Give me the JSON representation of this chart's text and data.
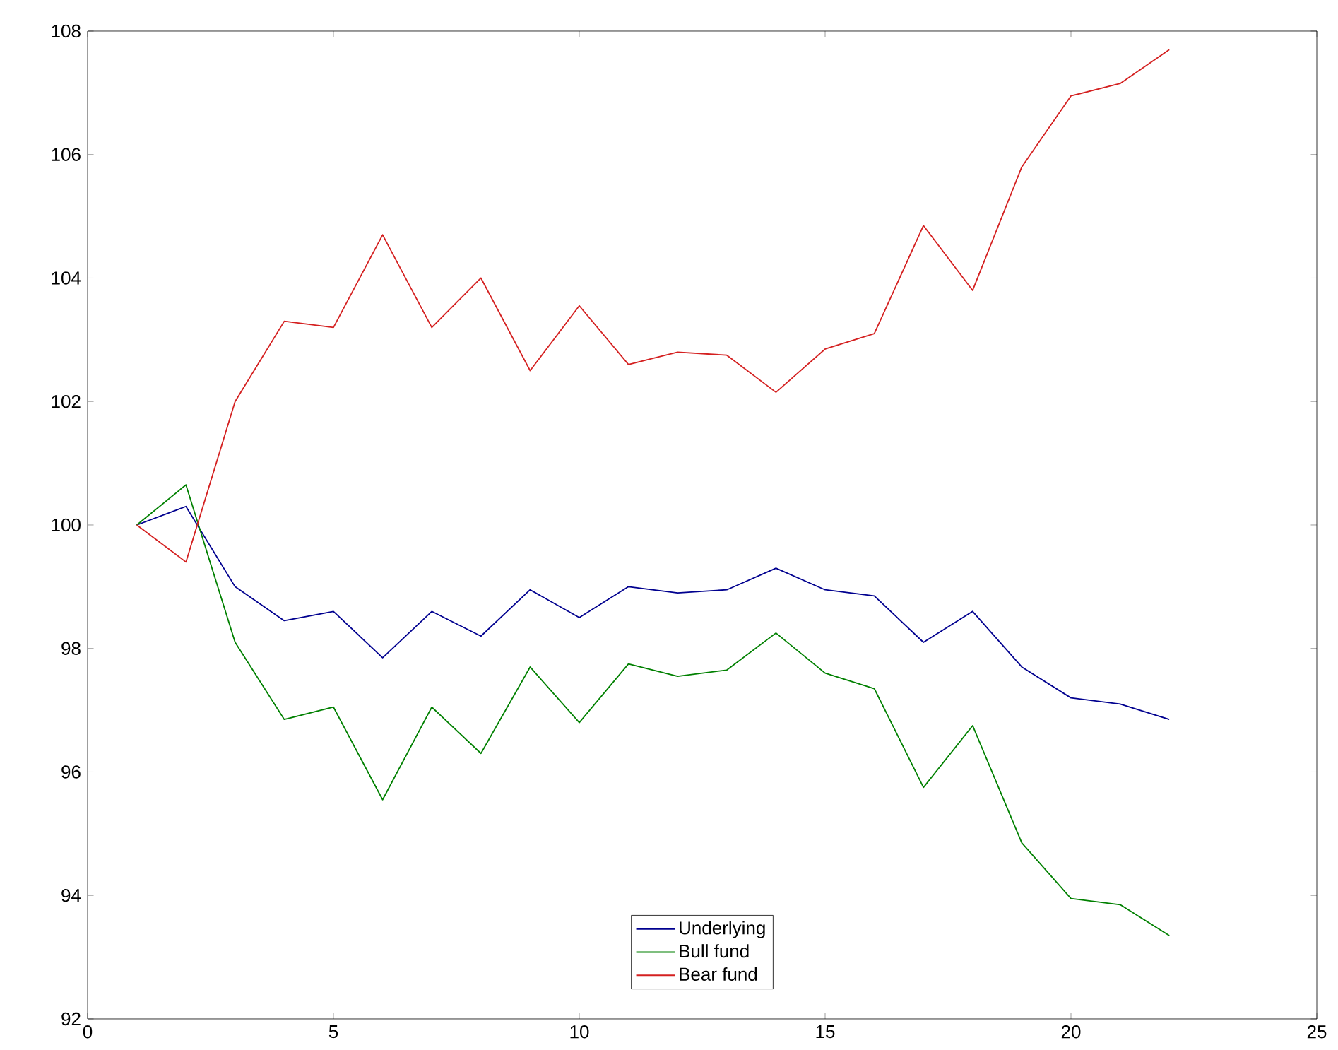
{
  "chart_data": {
    "type": "line",
    "x": [
      1,
      2,
      3,
      4,
      5,
      6,
      7,
      8,
      9,
      10,
      11,
      12,
      13,
      14,
      15,
      16,
      17,
      18,
      19,
      20,
      21,
      22
    ],
    "series": [
      {
        "name": "Underlying",
        "color": "#00008f",
        "values": [
          100,
          100.3,
          99.0,
          98.45,
          98.6,
          97.85,
          98.6,
          98.2,
          98.95,
          98.5,
          99.0,
          98.9,
          98.95,
          99.3,
          98.95,
          98.85,
          98.1,
          98.6,
          97.7,
          97.2,
          97.1,
          96.85
        ]
      },
      {
        "name": "Bull fund",
        "color": "#008000",
        "values": [
          100,
          100.65,
          98.1,
          96.85,
          97.05,
          95.55,
          97.05,
          96.3,
          97.7,
          96.8,
          97.75,
          97.55,
          97.65,
          98.25,
          97.6,
          97.35,
          95.75,
          96.75,
          94.85,
          93.95,
          93.85,
          93.35
        ]
      },
      {
        "name": "Bear fund",
        "color": "#d42020",
        "values": [
          100,
          99.4,
          102.0,
          103.3,
          103.2,
          104.7,
          103.2,
          104.0,
          102.5,
          103.55,
          102.6,
          102.8,
          102.75,
          102.15,
          102.85,
          103.1,
          104.85,
          103.8,
          105.8,
          106.95,
          107.15,
          107.7
        ]
      }
    ],
    "xlim": [
      0,
      25
    ],
    "xticks": [
      0,
      5,
      10,
      15,
      20,
      25
    ],
    "ylim": [
      92,
      108
    ],
    "yticks": [
      92,
      94,
      96,
      98,
      100,
      102,
      104,
      106,
      108
    ],
    "grid": false,
    "legend": "bottom",
    "marker": "none",
    "line_style": "solid"
  }
}
